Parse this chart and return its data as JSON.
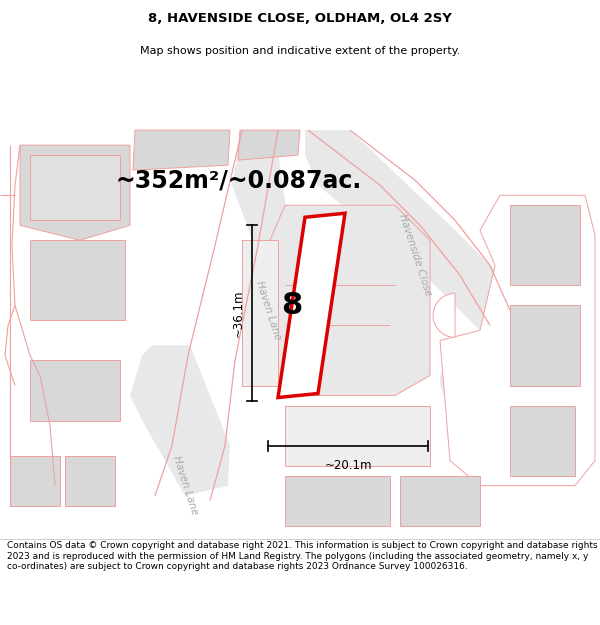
{
  "title_line1": "8, HAVENSIDE CLOSE, OLDHAM, OL4 2SY",
  "title_line2": "Map shows position and indicative extent of the property.",
  "area_text": "~352m²/~0.087ac.",
  "label_8": "8",
  "dim_width": "~20.1m",
  "dim_height": "~36.1m",
  "road_label_haven_upper": "Haven Lane",
  "road_label_haven_lower": "Haven Lane",
  "road_label_havenside": "Havenside Close",
  "footer_text": "Contains OS data © Crown copyright and database right 2021. This information is subject to Crown copyright and database rights 2023 and is reproduced with the permission of HM Land Registry. The polygons (including the associated geometry, namely x, y co-ordinates) are subject to Crown copyright and database rights 2023 Ordnance Survey 100026316.",
  "bg_color": "#ffffff",
  "plot_red": "#dd0000",
  "bld_gray": "#d8d8d8",
  "pink": "#f0a0a0",
  "pink_light": "#f5c8c8",
  "road_gray": "#c8c8c8",
  "title_fs": 9.5,
  "subtitle_fs": 8.0,
  "area_fs": 17,
  "dim_fs": 8.5,
  "road_label_fs": 7.5,
  "footer_fs": 6.5,
  "num_label_fs": 22
}
